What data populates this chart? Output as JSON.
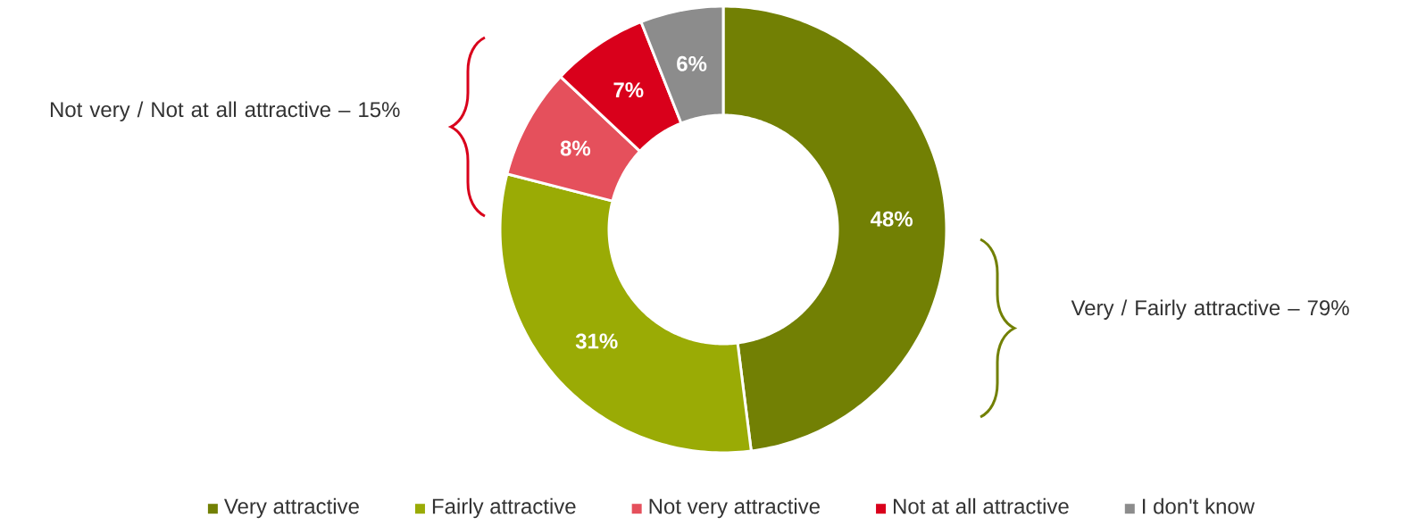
{
  "chart_data": {
    "type": "donut",
    "categories": [
      "Very attractive",
      "Fairly attractive",
      "Not very attractive",
      "Not at all attractive",
      "I don't know"
    ],
    "values": [
      48,
      31,
      8,
      7,
      6
    ],
    "colors": [
      "#728004",
      "#9aab05",
      "#e5505c",
      "#d9001b",
      "#8c8c8c"
    ],
    "value_labels": [
      "48%",
      "31%",
      "8%",
      "7%",
      "6%"
    ],
    "legend": "bottom",
    "annotations": [
      "Not very / Not at all attractive – 15%",
      "Very / Fairly attractive – 79%"
    ]
  }
}
